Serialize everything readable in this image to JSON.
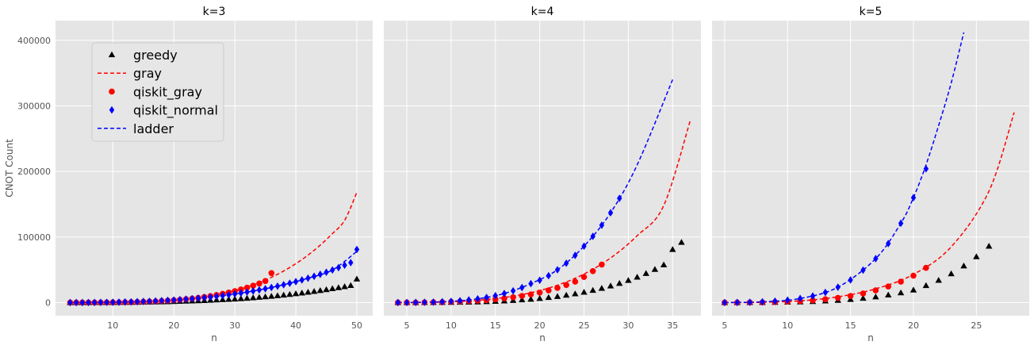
{
  "chart_data": {
    "type": "scatter",
    "ylabel": "CNOT Count",
    "ylim": [
      -20000,
      430000
    ],
    "yticks": [
      0,
      100000,
      200000,
      300000,
      400000
    ],
    "grid": true,
    "sharey": true,
    "legend": {
      "placement": "upper-left",
      "entries": [
        {
          "label": "greedy",
          "marker": "triangle",
          "color": "#000000"
        },
        {
          "label": "gray",
          "marker": "dashed-line",
          "color": "#ff0000"
        },
        {
          "label": "qiskit_gray",
          "marker": "circle",
          "color": "#ff0000"
        },
        {
          "label": "qiskit_normal",
          "marker": "diamond",
          "color": "#0000ff"
        },
        {
          "label": "ladder",
          "marker": "dashed-line",
          "color": "#0000ff"
        }
      ]
    },
    "panels": [
      {
        "title": "k=3",
        "xlabel": "n",
        "xlim": [
          0.6,
          52.6
        ],
        "xticks": [
          10,
          20,
          30,
          40,
          50
        ],
        "series": [
          {
            "name": "greedy",
            "marker": "triangle",
            "color": "#000000",
            "x": [
              3,
              4,
              5,
              6,
              7,
              8,
              9,
              10,
              11,
              12,
              13,
              14,
              15,
              16,
              17,
              18,
              19,
              20,
              21,
              22,
              23,
              24,
              25,
              26,
              27,
              28,
              29,
              30,
              31,
              32,
              33,
              34,
              35,
              36,
              37,
              38,
              39,
              40,
              41,
              42,
              43,
              44,
              45,
              46,
              47,
              48,
              49,
              50
            ],
            "y": [
              0,
              0,
              0,
              0,
              100,
              100,
              200,
              200,
              300,
              400,
              500,
              600,
              700,
              900,
              1000,
              1200,
              1400,
              1600,
              1900,
              2200,
              2500,
              2800,
              3200,
              3600,
              4000,
              4500,
              5000,
              5500,
              6100,
              6700,
              7400,
              8100,
              8900,
              9700,
              10600,
              11500,
              12500,
              13600,
              14700,
              15900,
              17100,
              18400,
              19800,
              21300,
              22800,
              24400,
              26100,
              36000
            ]
          },
          {
            "name": "gray",
            "marker": "dashed-line",
            "color": "#ff0000",
            "x": [
              3,
              5,
              8,
              10,
              12,
              14,
              16,
              18,
              20,
              22,
              24,
              26,
              28,
              30,
              32,
              34,
              36,
              38,
              40,
              42,
              44,
              46,
              48,
              50
            ],
            "y": [
              0,
              0,
              100,
              300,
              600,
              1000,
              1600,
              2600,
              3800,
              5500,
              7700,
              10400,
              14000,
              18400,
              23900,
              30600,
              38600,
              48100,
              59300,
              72400,
              87600,
              105200,
              125400,
              168000
            ]
          },
          {
            "name": "qiskit_gray",
            "marker": "circle",
            "color": "#ff0000",
            "x": [
              3,
              4,
              5,
              6,
              7,
              8,
              9,
              10,
              11,
              12,
              13,
              14,
              15,
              16,
              17,
              18,
              19,
              20,
              21,
              22,
              23,
              24,
              25,
              26,
              27,
              28,
              29,
              30,
              31,
              32,
              33,
              34,
              35,
              36
            ],
            "y": [
              0,
              0,
              0,
              0,
              100,
              100,
              200,
              300,
              400,
              500,
              700,
              900,
              1200,
              1500,
              1900,
              2400,
              2900,
              3600,
              4300,
              5200,
              6100,
              7200,
              8500,
              9900,
              11500,
              13300,
              15300,
              17500,
              20000,
              22700,
              25800,
              29100,
              32800,
              45000
            ]
          },
          {
            "name": "qiskit_normal",
            "marker": "diamond",
            "color": "#0000ff",
            "x": [
              3,
              4,
              5,
              6,
              7,
              8,
              9,
              10,
              11,
              12,
              13,
              14,
              15,
              16,
              17,
              18,
              19,
              20,
              21,
              22,
              23,
              24,
              25,
              26,
              27,
              28,
              29,
              30,
              31,
              32,
              33,
              34,
              35,
              36,
              37,
              38,
              39,
              40,
              41,
              42,
              43,
              44,
              45,
              46,
              47,
              48,
              49,
              50
            ],
            "y": [
              0,
              0,
              0,
              100,
              200,
              300,
              400,
              500,
              700,
              900,
              1100,
              1400,
              1700,
              2000,
              2400,
              2900,
              3400,
              3900,
              4500,
              5200,
              5900,
              6700,
              7600,
              8500,
              9500,
              10600,
              11800,
              13100,
              14500,
              16000,
              17600,
              19300,
              21100,
              23000,
              25000,
              27200,
              29500,
              31900,
              34500,
              37200,
              40100,
              43100,
              46300,
              49700,
              53300,
              57000,
              60900,
              81000
            ]
          },
          {
            "name": "ladder",
            "marker": "dashed-line",
            "color": "#0000ff",
            "x": [
              3,
              6,
              10,
              14,
              18,
              22,
              26,
              30,
              34,
              38,
              42,
              46,
              50
            ],
            "y": [
              0,
              100,
              500,
              1400,
              2900,
              5200,
              8500,
              13100,
              19300,
              27200,
              37200,
              49700,
              78000
            ]
          }
        ]
      },
      {
        "title": "k=4",
        "xlabel": "n",
        "xlim": [
          2.4,
          38.2
        ],
        "xticks": [
          5,
          10,
          15,
          20,
          25,
          30,
          35
        ],
        "series": [
          {
            "name": "greedy",
            "marker": "triangle",
            "color": "#000000",
            "x": [
              4,
              5,
              6,
              7,
              8,
              9,
              10,
              11,
              12,
              13,
              14,
              15,
              16,
              17,
              18,
              19,
              20,
              21,
              22,
              23,
              24,
              25,
              26,
              27,
              28,
              29,
              30,
              31,
              32,
              33,
              34,
              35,
              36
            ],
            "y": [
              0,
              0,
              0,
              100,
              200,
              300,
              400,
              600,
              800,
              1100,
              1500,
              2000,
              2600,
              3300,
              4200,
              5200,
              6400,
              7800,
              9400,
              11300,
              13400,
              15900,
              18700,
              21800,
              25400,
              29400,
              33900,
              38900,
              44500,
              50700,
              57600,
              81000,
              92000
            ]
          },
          {
            "name": "gray",
            "marker": "dashed-line",
            "color": "#ff0000",
            "x": [
              4,
              7,
              10,
              13,
              16,
              19,
              22,
              25,
              28,
              31,
              34,
              37
            ],
            "y": [
              0,
              300,
              1300,
              3500,
              7800,
              15000,
              26500,
              43500,
              68000,
              102000,
              148000,
              278000
            ]
          },
          {
            "name": "qiskit_gray",
            "marker": "circle",
            "color": "#ff0000",
            "x": [
              4,
              5,
              6,
              7,
              8,
              9,
              10,
              11,
              12,
              13,
              14,
              15,
              16,
              17,
              18,
              19,
              20,
              21,
              22,
              23,
              24,
              25,
              26,
              27
            ],
            "y": [
              0,
              0,
              100,
              300,
              500,
              700,
              1100,
              1500,
              2100,
              2900,
              3800,
              5000,
              6400,
              8100,
              10100,
              12500,
              15300,
              18600,
              22400,
              26800,
              31900,
              39000,
              48000,
              58000
            ]
          },
          {
            "name": "qiskit_normal",
            "marker": "diamond",
            "color": "#0000ff",
            "x": [
              4,
              5,
              6,
              7,
              8,
              9,
              10,
              11,
              12,
              13,
              14,
              15,
              16,
              17,
              18,
              19,
              20,
              21,
              22,
              23,
              24,
              25,
              26,
              27,
              28,
              29
            ],
            "y": [
              0,
              100,
              200,
              400,
              700,
              1200,
              1900,
              2800,
              4100,
              5700,
              7800,
              10500,
              13800,
              17900,
              22900,
              28900,
              34000,
              41000,
              50000,
              60000,
              72000,
              86000,
              101000,
              118000,
              137000,
              159000
            ]
          },
          {
            "name": "ladder",
            "marker": "dashed-line",
            "color": "#0000ff",
            "x": [
              4,
              7,
              10,
              13,
              16,
              19,
              22,
              25,
              28,
              31,
              35
            ],
            "y": [
              0,
              400,
              1900,
              5700,
              13800,
              28900,
              50000,
              86000,
              137000,
              210000,
              340000
            ]
          }
        ]
      },
      {
        "title": "k=5",
        "xlabel": "n",
        "xlim": [
          4.0,
          29.2
        ],
        "xticks": [
          5,
          10,
          15,
          20,
          25
        ],
        "series": [
          {
            "name": "greedy",
            "marker": "triangle",
            "color": "#000000",
            "x": [
              5,
              6,
              7,
              8,
              9,
              10,
              11,
              12,
              13,
              14,
              15,
              16,
              17,
              18,
              19,
              20,
              21,
              22,
              23,
              24,
              25,
              26
            ],
            "y": [
              0,
              0,
              100,
              200,
              400,
              700,
              1100,
              1700,
              2500,
              3500,
              4900,
              6600,
              8800,
              11600,
              15000,
              19200,
              26000,
              34000,
              44000,
              56000,
              70000,
              86000
            ]
          },
          {
            "name": "gray",
            "marker": "dashed-line",
            "color": "#ff0000",
            "x": [
              5,
              8,
              11,
              14,
              17,
              20,
              23,
              26,
              28
            ],
            "y": [
              0,
              500,
              2600,
              8800,
              21000,
              43000,
              85000,
              170000,
              290000
            ]
          },
          {
            "name": "qiskit_gray",
            "marker": "circle",
            "color": "#ff0000",
            "x": [
              5,
              6,
              7,
              8,
              9,
              10,
              11,
              12,
              13,
              14,
              15,
              16,
              17,
              18,
              19,
              20,
              21
            ],
            "y": [
              0,
              100,
              200,
              400,
              800,
              1400,
              2200,
              3400,
              5000,
              7200,
              10000,
              13800,
              18600,
              24600,
              32000,
              41000,
              53000
            ]
          },
          {
            "name": "qiskit_normal",
            "marker": "diamond",
            "color": "#0000ff",
            "x": [
              5,
              6,
              7,
              8,
              9,
              10,
              11,
              12,
              13,
              14,
              15,
              16,
              17,
              18,
              19,
              20,
              21
            ],
            "y": [
              0,
              200,
              500,
              1100,
              2100,
              3700,
              6200,
              10000,
              15500,
              23500,
              34500,
              49500,
              67000,
              90000,
              121000,
              160000,
              204000
            ]
          },
          {
            "name": "ladder",
            "marker": "dashed-line",
            "color": "#0000ff",
            "x": [
              5,
              8,
              11,
              14,
              17,
              19,
              20,
              21,
              22,
              23,
              24
            ],
            "y": [
              0,
              1100,
              6200,
              23500,
              67000,
              121000,
              160000,
              210000,
              270000,
              335000,
              412000
            ]
          }
        ]
      }
    ]
  }
}
